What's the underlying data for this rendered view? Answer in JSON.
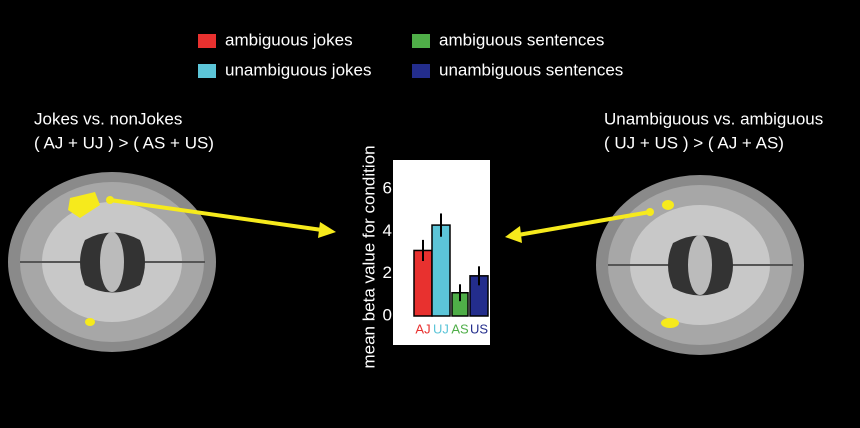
{
  "chart_data": {
    "type": "bar",
    "ylabel": "mean beta value for condition",
    "categories": [
      "AJ",
      "UJ",
      "AS",
      "US"
    ],
    "series": [
      {
        "name": "ambiguous jokes",
        "color": "#e8312f",
        "values": [
          3.1,
          null,
          null,
          null
        ],
        "errors": [
          0.5,
          null,
          null,
          null
        ]
      },
      {
        "name": "unambiguous jokes",
        "color": "#5cc5d8",
        "values": [
          null,
          4.3,
          null,
          null
        ],
        "errors": [
          null,
          0.55,
          null,
          null
        ]
      },
      {
        "name": "ambiguous sentences",
        "color": "#4fae48",
        "values": [
          null,
          null,
          1.1,
          null
        ],
        "errors": [
          null,
          null,
          0.4,
          null
        ]
      },
      {
        "name": "unambiguous sentences",
        "color": "#232d8c",
        "values": [
          null,
          null,
          null,
          1.9
        ],
        "errors": [
          null,
          null,
          null,
          0.45
        ]
      }
    ],
    "ylim": [
      0,
      7
    ],
    "yticks": [
      0,
      2,
      4,
      6
    ]
  },
  "panels": {
    "left": {
      "title": "Jokes vs. nonJokes",
      "contrast": "( AJ + UJ ) > ( AS + US)"
    },
    "right": {
      "title": "Unambiguous vs. ambiguous",
      "contrast": "( UJ + US ) > ( AJ + AS)"
    }
  }
}
